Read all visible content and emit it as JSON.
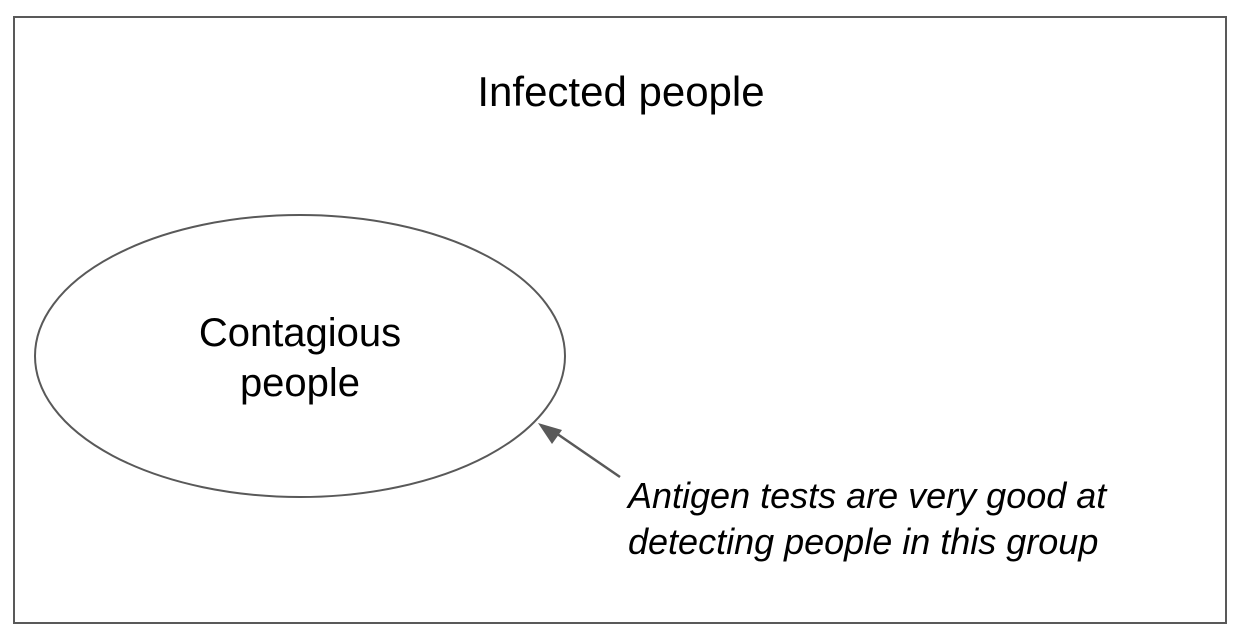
{
  "diagram": {
    "outer_set": {
      "label": "Infected people"
    },
    "inner_set": {
      "label_lines": [
        "Contagious",
        "people"
      ]
    },
    "annotation": {
      "lines": [
        "Antigen tests are very good at",
        "detecting people in this group"
      ]
    },
    "colors": {
      "outline": "#595959",
      "text": "#000000",
      "background": "#ffffff"
    }
  }
}
